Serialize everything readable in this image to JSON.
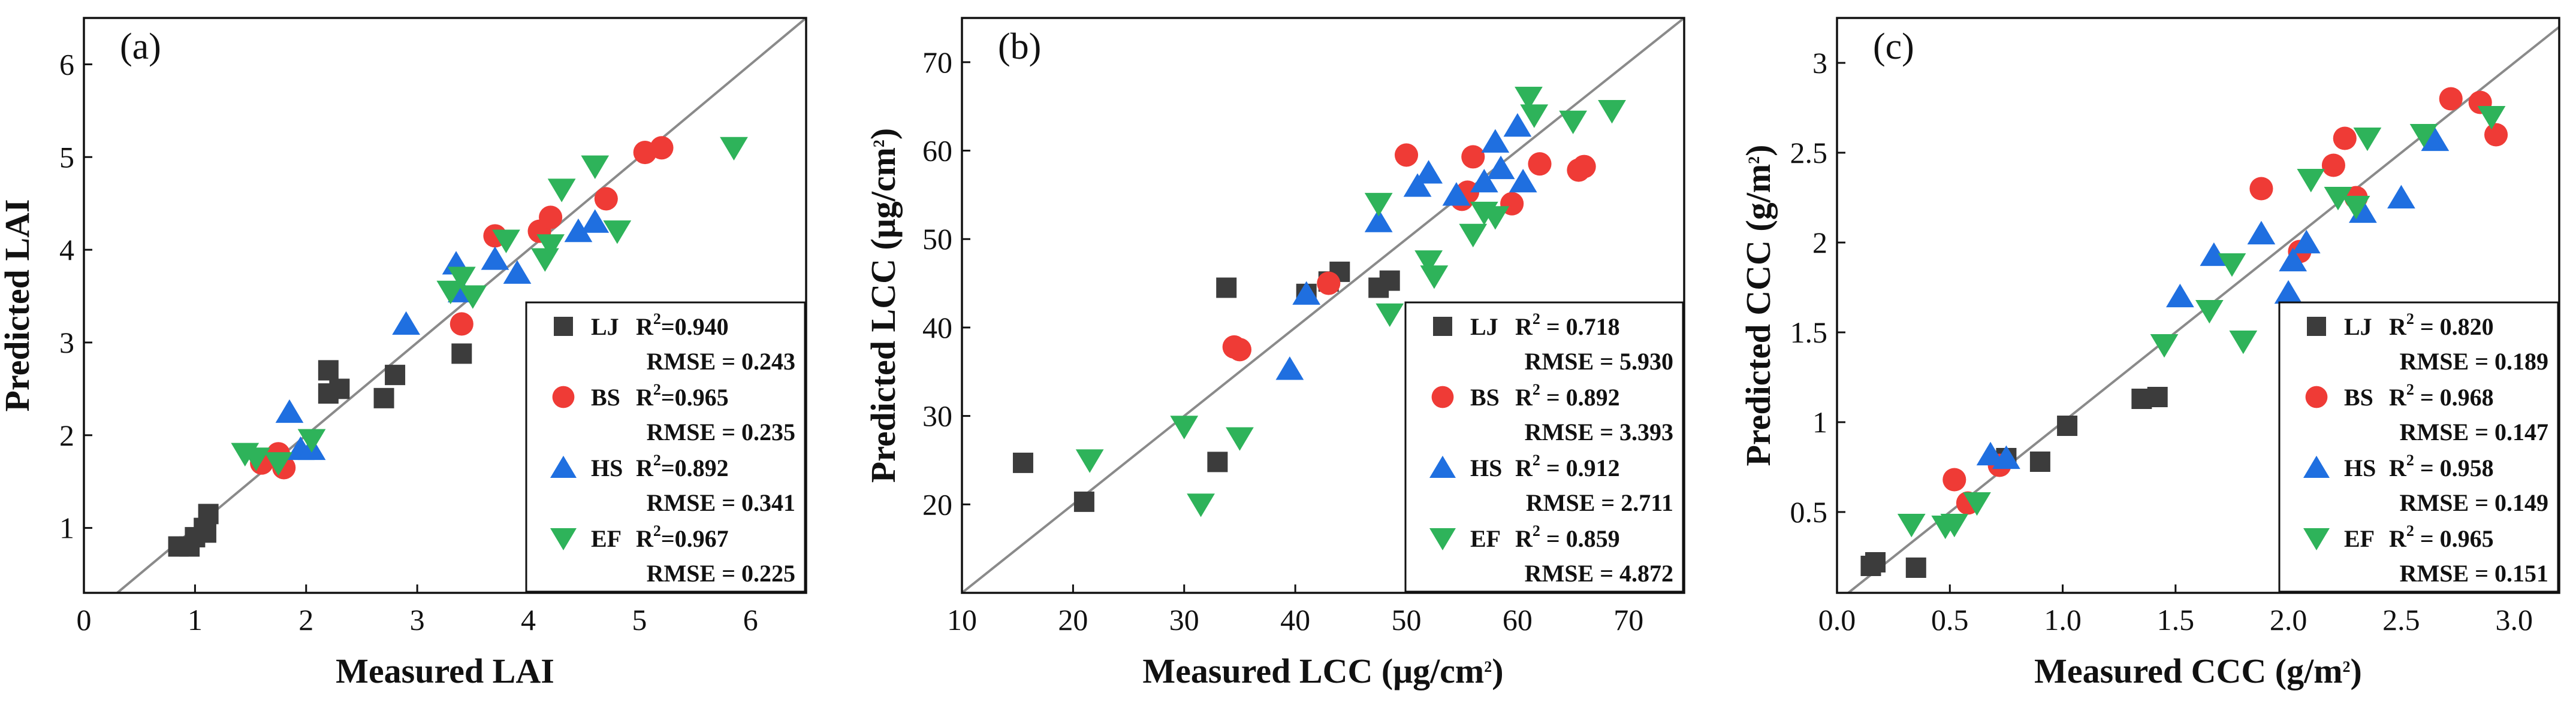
{
  "series_styles": {
    "LJ": {
      "color": "#3c3c3c",
      "marker": "square"
    },
    "BS": {
      "color": "#ef3b36",
      "marker": "circle"
    },
    "HS": {
      "color": "#1f6fe0",
      "marker": "triangle-up"
    },
    "EF": {
      "color": "#2eb35a",
      "marker": "triangle-down"
    }
  },
  "chart_data": [
    {
      "type": "scatter",
      "panel_label": "(a)",
      "xlabel": "Measured LAI",
      "ylabel": "Predicted LAI",
      "xlim": [
        0,
        6.5
      ],
      "ylim": [
        0.3,
        6.5
      ],
      "xticks": [
        0,
        1,
        2,
        3,
        4,
        5,
        6
      ],
      "yticks": [
        1,
        2,
        3,
        4,
        5,
        6
      ],
      "one_to_one_line": true,
      "legend": [
        {
          "name": "LJ",
          "r2": "R²=0.940",
          "rmse": "RMSE = 0.243"
        },
        {
          "name": "BS",
          "r2": "R²=0.965",
          "rmse": "RMSE = 0.235"
        },
        {
          "name": "HS",
          "r2": "R²=0.892",
          "rmse": "RMSE = 0.341"
        },
        {
          "name": "EF",
          "r2": "R²=0.967",
          "rmse": "RMSE = 0.225"
        }
      ],
      "series": [
        {
          "name": "LJ",
          "points": [
            [
              0.85,
              0.8
            ],
            [
              0.95,
              0.8
            ],
            [
              1.0,
              0.9
            ],
            [
              1.1,
              0.95
            ],
            [
              1.12,
              1.15
            ],
            [
              1.08,
              1.0
            ],
            [
              2.2,
              2.45
            ],
            [
              2.2,
              2.7
            ],
            [
              2.3,
              2.5
            ],
            [
              2.7,
              2.4
            ],
            [
              2.8,
              2.65
            ],
            [
              3.4,
              2.88
            ]
          ]
        },
        {
          "name": "BS",
          "points": [
            [
              1.6,
              1.7
            ],
            [
              1.75,
              1.8
            ],
            [
              1.8,
              1.65
            ],
            [
              3.7,
              4.15
            ],
            [
              3.4,
              3.2
            ],
            [
              4.1,
              4.2
            ],
            [
              4.2,
              4.35
            ],
            [
              4.7,
              4.55
            ],
            [
              5.05,
              5.05
            ],
            [
              5.2,
              5.1
            ]
          ]
        },
        {
          "name": "HS",
          "points": [
            [
              1.85,
              2.25
            ],
            [
              1.95,
              1.85
            ],
            [
              2.05,
              1.85
            ],
            [
              2.9,
              3.2
            ],
            [
              3.35,
              3.85
            ],
            [
              3.4,
              3.55
            ],
            [
              3.7,
              3.9
            ],
            [
              3.9,
              3.75
            ],
            [
              4.45,
              4.2
            ],
            [
              4.6,
              4.3
            ]
          ]
        },
        {
          "name": "EF",
          "points": [
            [
              1.45,
              1.8
            ],
            [
              1.55,
              1.75
            ],
            [
              1.75,
              1.7
            ],
            [
              2.05,
              1.95
            ],
            [
              3.3,
              3.55
            ],
            [
              3.4,
              3.7
            ],
            [
              3.5,
              3.5
            ],
            [
              3.8,
              4.1
            ],
            [
              4.15,
              3.9
            ],
            [
              4.2,
              4.05
            ],
            [
              4.3,
              4.65
            ],
            [
              4.6,
              4.9
            ],
            [
              4.8,
              4.2
            ],
            [
              5.85,
              5.1
            ]
          ]
        }
      ]
    },
    {
      "type": "scatter",
      "panel_label": "(b)",
      "xlabel": "Measured LCC (μg/cm²)",
      "ylabel": "Predicted LCC (μg/cm²)",
      "xlim": [
        10,
        75
      ],
      "ylim": [
        10,
        75
      ],
      "xticks": [
        10,
        20,
        30,
        40,
        50,
        60,
        70
      ],
      "yticks": [
        20,
        30,
        40,
        50,
        60,
        70
      ],
      "one_to_one_line": true,
      "legend": [
        {
          "name": "LJ",
          "r2": "R² = 0.718",
          "rmse": "RMSE = 5.930"
        },
        {
          "name": "BS",
          "r2": "R² = 0.892",
          "rmse": "RMSE = 3.393"
        },
        {
          "name": "HS",
          "r2": "R² = 0.912",
          "rmse": "RMSE = 2.711"
        },
        {
          "name": "EF",
          "r2": "R² = 0.859",
          "rmse": "RMSE = 4.872"
        }
      ],
      "series": [
        {
          "name": "LJ",
          "points": [
            [
              15.5,
              24.7
            ],
            [
              21,
              20.3
            ],
            [
              33,
              24.8
            ],
            [
              33.8,
              44.5
            ],
            [
              41,
              43.8
            ],
            [
              43,
              45.2
            ],
            [
              44,
              46.3
            ],
            [
              47.5,
              44.5
            ],
            [
              48.5,
              45.3
            ]
          ]
        },
        {
          "name": "BS",
          "points": [
            [
              34.5,
              37.8
            ],
            [
              35,
              37.5
            ],
            [
              43,
              45
            ],
            [
              50,
              59.5
            ],
            [
              55,
              54.5
            ],
            [
              55.5,
              55.3
            ],
            [
              56,
              59.3
            ],
            [
              59.5,
              54
            ],
            [
              62,
              58.5
            ],
            [
              65.5,
              57.8
            ],
            [
              66,
              58.2
            ]
          ]
        },
        {
          "name": "HS",
          "points": [
            [
              39.5,
              35.3
            ],
            [
              41,
              43.8
            ],
            [
              47.5,
              52
            ],
            [
              51,
              56
            ],
            [
              52,
              57.5
            ],
            [
              54.5,
              55
            ],
            [
              57,
              56.5
            ],
            [
              58,
              61
            ],
            [
              58.5,
              58
            ],
            [
              60,
              62.8
            ],
            [
              60.5,
              56.5
            ]
          ]
        },
        {
          "name": "EF",
          "points": [
            [
              21.5,
              25
            ],
            [
              30,
              28.8
            ],
            [
              31.5,
              20
            ],
            [
              35,
              27.5
            ],
            [
              47.5,
              54
            ],
            [
              48.5,
              41.5
            ],
            [
              52,
              47.5
            ],
            [
              52.5,
              45.8
            ],
            [
              56,
              50.5
            ],
            [
              57,
              53
            ],
            [
              58,
              52.5
            ],
            [
              61,
              66
            ],
            [
              61.5,
              64
            ],
            [
              65,
              63.3
            ],
            [
              68.5,
              64.5
            ]
          ]
        }
      ]
    },
    {
      "type": "scatter",
      "panel_label": "(c)",
      "xlabel": "Measured CCC (g/m²)",
      "ylabel": "Predicted CCC (g/m²)",
      "xlim": [
        0,
        3.2
      ],
      "ylim": [
        0.05,
        3.25
      ],
      "xticks": [
        0.0,
        0.5,
        1.0,
        1.5,
        2.0,
        2.5,
        3.0
      ],
      "yticks": [
        0.5,
        1.0,
        1.5,
        2.0,
        2.5,
        3.0
      ],
      "one_to_one_line": true,
      "legend": [
        {
          "name": "LJ",
          "r2": "R² = 0.820",
          "rmse": "RMSE = 0.189"
        },
        {
          "name": "BS",
          "r2": "R² = 0.968",
          "rmse": "RMSE = 0.147"
        },
        {
          "name": "HS",
          "r2": "R² = 0.958",
          "rmse": "RMSE = 0.149"
        },
        {
          "name": "EF",
          "r2": "R² = 0.965",
          "rmse": "RMSE = 0.151"
        }
      ],
      "series": [
        {
          "name": "LJ",
          "points": [
            [
              0.15,
              0.2
            ],
            [
              0.17,
              0.22
            ],
            [
              0.35,
              0.19
            ],
            [
              0.75,
              0.8
            ],
            [
              0.9,
              0.78
            ],
            [
              1.02,
              0.98
            ],
            [
              1.35,
              1.13
            ],
            [
              1.42,
              1.14
            ]
          ]
        },
        {
          "name": "BS",
          "points": [
            [
              0.52,
              0.68
            ],
            [
              0.58,
              0.55
            ],
            [
              0.72,
              0.76
            ],
            [
              1.88,
              2.3
            ],
            [
              2.05,
              1.95
            ],
            [
              2.2,
              2.43
            ],
            [
              2.25,
              2.58
            ],
            [
              2.3,
              2.25
            ],
            [
              2.72,
              2.8
            ],
            [
              2.85,
              2.78
            ],
            [
              2.92,
              2.6
            ]
          ]
        },
        {
          "name": "HS",
          "points": [
            [
              0.68,
              0.82
            ],
            [
              0.75,
              0.8
            ],
            [
              1.52,
              1.7
            ],
            [
              1.67,
              1.93
            ],
            [
              1.88,
              2.05
            ],
            [
              2.0,
              1.72
            ],
            [
              2.02,
              1.9
            ],
            [
              2.08,
              2.0
            ],
            [
              2.33,
              2.17
            ],
            [
              2.5,
              2.25
            ],
            [
              2.65,
              2.57
            ]
          ]
        },
        {
          "name": "EF",
          "points": [
            [
              0.33,
              0.43
            ],
            [
              0.48,
              0.42
            ],
            [
              0.52,
              0.43
            ],
            [
              0.62,
              0.55
            ],
            [
              1.45,
              1.43
            ],
            [
              1.65,
              1.62
            ],
            [
              1.75,
              1.88
            ],
            [
              1.8,
              1.45
            ],
            [
              2.1,
              2.35
            ],
            [
              2.22,
              2.25
            ],
            [
              2.3,
              2.2
            ],
            [
              2.35,
              2.58
            ],
            [
              2.6,
              2.6
            ],
            [
              2.9,
              2.7
            ]
          ]
        }
      ]
    }
  ]
}
